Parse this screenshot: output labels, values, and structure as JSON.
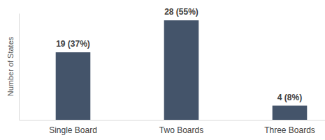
{
  "chart_data": {
    "type": "bar",
    "y_label": "Number of States",
    "categories": [
      "Single Board",
      "Two Boards",
      "Three Boards"
    ],
    "values": [
      19,
      28,
      4
    ],
    "value_labels": [
      "19 (37%)",
      "28 (55%)",
      "4 (8%)"
    ],
    "data_labels": true,
    "color": "#44546a",
    "ylim": [
      0,
      30
    ],
    "tick_labels": "x",
    "grid": false
  }
}
